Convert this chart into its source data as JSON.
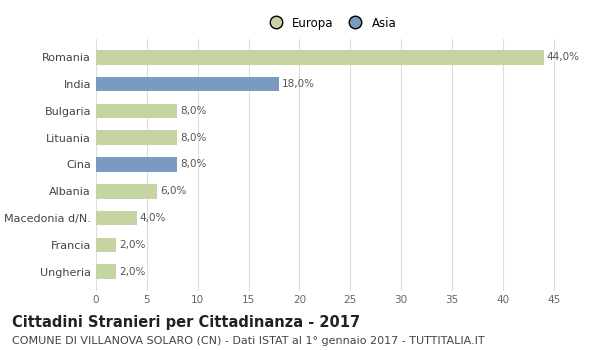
{
  "categories": [
    "Romania",
    "India",
    "Bulgaria",
    "Lituania",
    "Cina",
    "Albania",
    "Macedonia d/N.",
    "Francia",
    "Ungheria"
  ],
  "values": [
    44.0,
    18.0,
    8.0,
    8.0,
    8.0,
    6.0,
    4.0,
    2.0,
    2.0
  ],
  "colors": [
    "#c5d4a0",
    "#7a9abf",
    "#c5d4a0",
    "#c5d4a0",
    "#7a9abf",
    "#c5d4a0",
    "#c5d4a0",
    "#c5d4a0",
    "#c5d4a0"
  ],
  "labels": [
    "44,0%",
    "18,0%",
    "8,0%",
    "8,0%",
    "8,0%",
    "6,0%",
    "4,0%",
    "2,0%",
    "2,0%"
  ],
  "legend": [
    {
      "label": "Europa",
      "color": "#c5d4a0"
    },
    {
      "label": "Asia",
      "color": "#7a9abf"
    }
  ],
  "xlim": [
    0,
    46
  ],
  "xticks": [
    0,
    5,
    10,
    15,
    20,
    25,
    30,
    35,
    40,
    45
  ],
  "title": "Cittadini Stranieri per Cittadinanza - 2017",
  "subtitle": "COMUNE DI VILLANOVA SOLARO (CN) - Dati ISTAT al 1° gennaio 2017 - TUTTITALIA.IT",
  "title_fontsize": 10.5,
  "subtitle_fontsize": 8.0,
  "background_color": "#ffffff",
  "grid_color": "#dddddd",
  "bar_height": 0.55
}
